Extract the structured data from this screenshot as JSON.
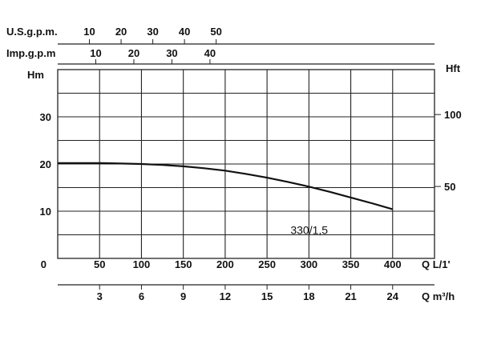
{
  "chart_data": {
    "type": "line",
    "title": "",
    "axes": {
      "top_us": {
        "label": "U.S.g.p.m.",
        "ticks": [
          "10",
          "20",
          "30",
          "40",
          "50"
        ]
      },
      "top_imp": {
        "label": "Imp.g.p.m",
        "ticks": [
          "10",
          "20",
          "30",
          "40"
        ]
      },
      "left": {
        "label": "Hm",
        "ticks": [
          "0",
          "10",
          "20",
          "30"
        ],
        "range": [
          0,
          40
        ]
      },
      "right": {
        "label": "Hft",
        "ticks": [
          "50",
          "100"
        ]
      },
      "bottom_lmin": {
        "label": "Q L/1'",
        "ticks": [
          "50",
          "100",
          "150",
          "200",
          "250",
          "300",
          "350",
          "400"
        ],
        "range": [
          0,
          450
        ]
      },
      "bottom_m3h": {
        "label": "Q m³/h",
        "ticks": [
          "3",
          "6",
          "9",
          "12",
          "15",
          "18",
          "21",
          "24"
        ]
      }
    },
    "grid": true,
    "series": [
      {
        "name": "330/1,5",
        "x": [
          0,
          25,
          50,
          75,
          100,
          125,
          150,
          175,
          200,
          225,
          250,
          275,
          300,
          325,
          350,
          375,
          400
        ],
        "y": [
          20.2,
          20.2,
          20.2,
          20.1,
          20.0,
          19.8,
          19.5,
          19.1,
          18.6,
          17.9,
          17.1,
          16.2,
          15.2,
          14.1,
          12.9,
          11.7,
          10.4
        ]
      }
    ]
  }
}
